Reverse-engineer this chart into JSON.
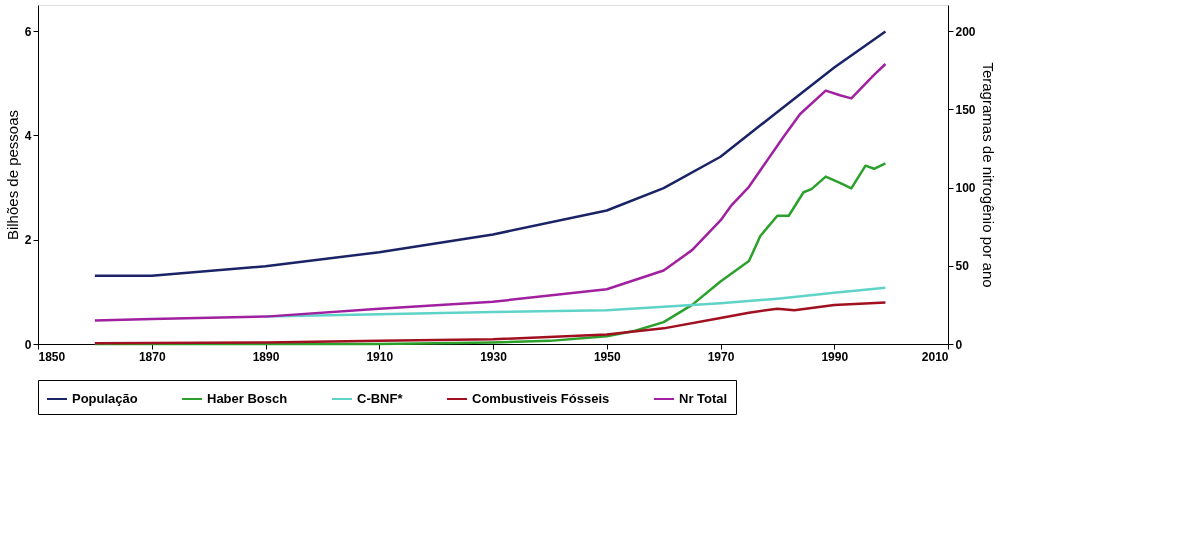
{
  "chart_data": {
    "type": "line",
    "ylabel": "Bilhões de pessoas",
    "y2label": "Teragramas de nitrogênio por ano",
    "xlim": [
      1850,
      2010
    ],
    "xticks": [
      1850,
      1870,
      1890,
      1910,
      1930,
      1950,
      1970,
      1990,
      2010
    ],
    "ylim": [
      0,
      6.5
    ],
    "yticks": [
      0,
      2,
      4,
      6
    ],
    "y2lim": [
      0,
      216.7
    ],
    "y2ticks": [
      0,
      50,
      100,
      150,
      200
    ],
    "grid": false,
    "legend": "bottom",
    "series": [
      {
        "name": "População",
        "color": "#1a2366",
        "x": [
          1860,
          1870,
          1890,
          1910,
          1930,
          1950,
          1960,
          1970,
          1980,
          1990,
          1999
        ],
        "values": [
          1.31,
          1.31,
          1.49,
          1.76,
          2.1,
          2.56,
          2.99,
          3.59,
          4.45,
          5.3,
          5.99
        ]
      },
      {
        "name": "Haber Bosch",
        "color": "#2ca02c",
        "axis": "y2",
        "x": [
          1860,
          1910,
          1930,
          1940,
          1950,
          1955,
          1960,
          1965,
          1970,
          1975,
          1977,
          1980,
          1982,
          1984.6,
          1986,
          1988.5,
          1991,
          1993,
          1995.5,
          1997,
          1999
        ],
        "values": [
          0,
          0,
          1,
          2,
          5,
          8.5,
          14,
          25,
          40,
          53,
          69,
          82,
          82,
          97,
          99,
          107,
          103,
          99.5,
          114,
          112,
          115.5
        ]
      },
      {
        "name": "C-BNF*",
        "color": "#5fd3c8",
        "axis": "y2",
        "x": [
          1890,
          1910,
          1930,
          1950,
          1970,
          1980,
          1990,
          1999
        ],
        "values": [
          17.5,
          19,
          20.5,
          21.6,
          26,
          29,
          32.7,
          36
        ]
      },
      {
        "name": "Combustiveis Fósseis",
        "color": "#a01020",
        "axis": "y2",
        "x": [
          1860,
          1890,
          1910,
          1930,
          1950,
          1960,
          1970,
          1975,
          1980,
          1983,
          1990,
          1999
        ],
        "values": [
          0.5,
          1,
          2,
          3,
          6,
          10,
          16.6,
          20,
          22.6,
          21.6,
          25,
          26.6
        ]
      },
      {
        "name": "Nr Total",
        "color": "#a020a0",
        "axis": "y2",
        "x": [
          1860,
          1870,
          1890,
          1910,
          1930,
          1950,
          1960,
          1965,
          1970,
          1972,
          1975,
          1981,
          1984,
          1988.5,
          1991,
          1993,
          1997,
          1999
        ],
        "values": [
          15,
          16,
          17.5,
          22.6,
          27,
          35,
          47,
          60,
          79,
          89,
          100.5,
          132,
          147,
          162,
          159,
          157,
          172,
          179
        ]
      }
    ]
  }
}
